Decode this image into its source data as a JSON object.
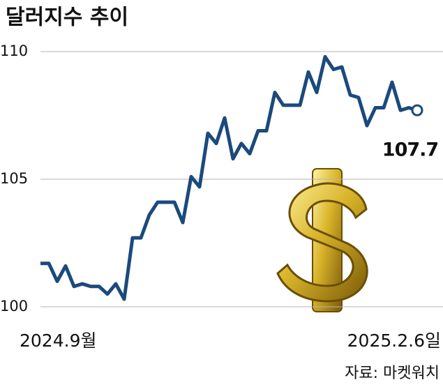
{
  "chart_data": {
    "type": "line",
    "title": "달러지수 추이",
    "source": "자료: 마켓워치",
    "categories": [
      "2024.9월",
      null,
      null,
      null,
      null,
      null,
      null,
      null,
      null,
      null,
      null,
      null,
      null,
      null,
      null,
      null,
      null,
      null,
      null,
      null,
      null,
      null,
      null,
      null,
      null,
      null,
      null,
      null,
      null,
      null,
      null,
      null,
      null,
      null,
      null,
      null,
      null,
      null,
      null,
      null,
      null,
      null,
      null,
      null,
      null,
      "2025.2.6일"
    ],
    "values": [
      101.7,
      101.7,
      101.0,
      101.6,
      100.8,
      100.9,
      100.8,
      100.8,
      100.5,
      100.9,
      100.3,
      102.7,
      102.7,
      103.6,
      104.1,
      104.1,
      104.1,
      103.3,
      105.1,
      104.7,
      106.8,
      106.4,
      107.4,
      105.8,
      106.4,
      106.0,
      106.9,
      106.9,
      108.4,
      107.9,
      107.9,
      107.9,
      109.2,
      108.4,
      109.8,
      109.3,
      109.4,
      108.3,
      108.2,
      107.1,
      107.8,
      107.8,
      108.8,
      107.7,
      107.8,
      107.7
    ],
    "color": "#1b4a7c",
    "ylim": [
      100,
      110
    ],
    "yticks": [
      100,
      105,
      110
    ],
    "grid": true
  }
}
